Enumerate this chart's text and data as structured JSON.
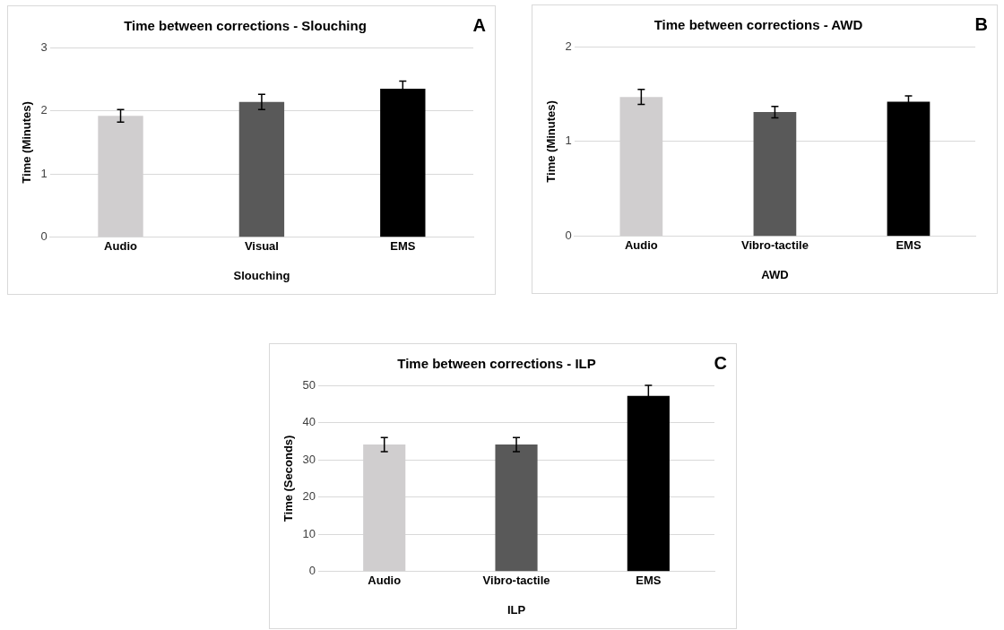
{
  "chart_data": [
    {
      "type": "bar",
      "title": "Time between corrections - Slouching",
      "ylabel": "Time (Minutes)",
      "xlabel": "Slouching",
      "annotations": [
        "A"
      ],
      "categories": [
        "Audio",
        "Visual",
        "EMS"
      ],
      "values": [
        1.92,
        2.14,
        2.35
      ],
      "errors": [
        0.1,
        0.12,
        0.12
      ],
      "colors": [
        "#d0cecf",
        "#595959",
        "#000000"
      ],
      "ylim": [
        0,
        3
      ],
      "yticks": [
        0,
        1,
        2,
        3
      ],
      "grid": "y",
      "legend": false
    },
    {
      "type": "bar",
      "title": "Time between corrections - AWD",
      "ylabel": "Time (Minutes)",
      "xlabel": "AWD",
      "annotations": [
        "B"
      ],
      "categories": [
        "Audio",
        "Vibro-tactile",
        "EMS"
      ],
      "values": [
        1.47,
        1.31,
        1.42
      ],
      "errors": [
        0.08,
        0.06,
        0.06
      ],
      "colors": [
        "#d0cecf",
        "#595959",
        "#000000"
      ],
      "ylim": [
        0,
        2
      ],
      "yticks": [
        0,
        1,
        2
      ],
      "grid": "y",
      "legend": false
    },
    {
      "type": "bar",
      "title": "Time between corrections - ILP",
      "ylabel": "Time (Seconds)",
      "xlabel": "ILP",
      "annotations": [
        "C"
      ],
      "categories": [
        "Audio",
        "Vibro-tactile",
        "EMS"
      ],
      "values": [
        34.1,
        34.1,
        47.2
      ],
      "errors": [
        1.9,
        1.9,
        2.8
      ],
      "colors": [
        "#d0cecf",
        "#595959",
        "#000000"
      ],
      "ylim": [
        0,
        50
      ],
      "yticks": [
        0,
        10,
        20,
        30,
        40,
        50
      ],
      "grid": "y",
      "legend": false
    }
  ]
}
